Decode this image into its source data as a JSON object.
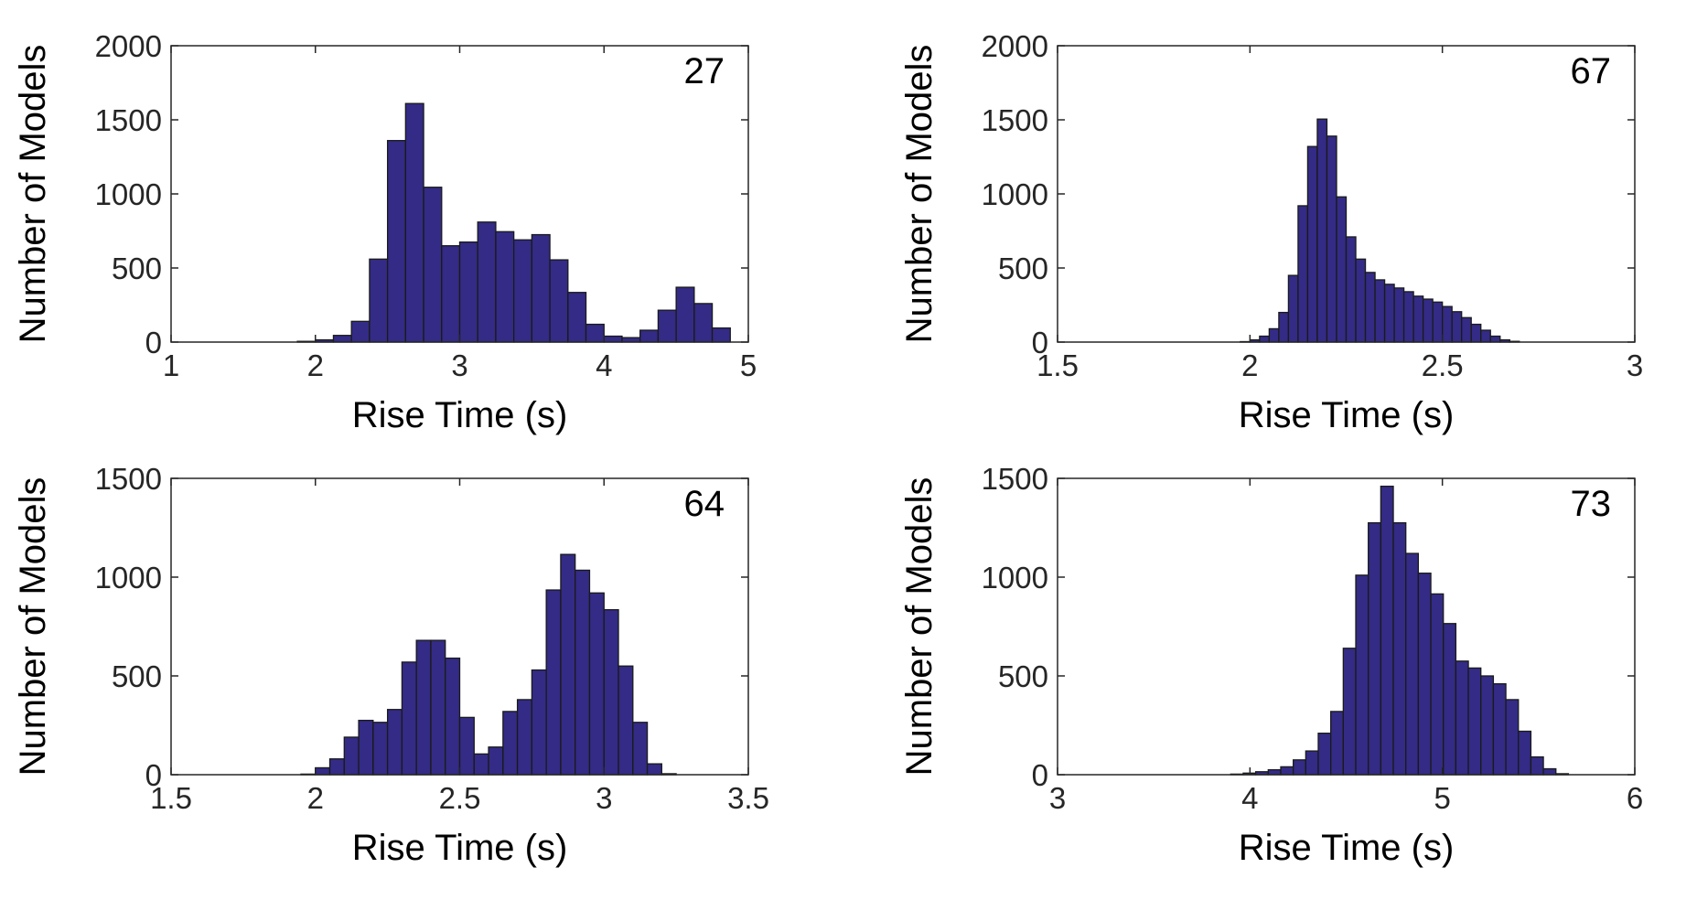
{
  "colors": {
    "bar_fill": "#332b85",
    "bar_edge": "#1a1a1a",
    "axes": "#262626"
  },
  "chart_data": [
    {
      "type": "bar",
      "panel_label": "27",
      "xlabel": "Rise Time (s)",
      "ylabel": "Number of Models",
      "xlim": [
        1,
        5
      ],
      "ylim": [
        0,
        2000
      ],
      "xticks": [
        1,
        2,
        3,
        4,
        5
      ],
      "yticks": [
        0,
        500,
        1000,
        1500,
        2000
      ],
      "bin_width": 0.125,
      "bins_start": [
        1.875,
        2.0,
        2.125,
        2.25,
        2.375,
        2.5,
        2.625,
        2.75,
        2.875,
        3.0,
        3.125,
        3.25,
        3.375,
        3.5,
        3.625,
        3.75,
        3.875,
        4.0,
        4.125,
        4.25,
        4.375,
        4.5,
        4.625,
        4.75
      ],
      "values": [
        5,
        15,
        45,
        140,
        560,
        1360,
        1610,
        1045,
        650,
        675,
        810,
        745,
        690,
        725,
        555,
        335,
        120,
        40,
        30,
        80,
        215,
        370,
        260,
        95
      ]
    },
    {
      "type": "bar",
      "panel_label": "67",
      "xlabel": "Rise Time (s)",
      "ylabel": "Number of Models",
      "xlim": [
        1.5,
        3
      ],
      "ylim": [
        0,
        2000
      ],
      "xticks": [
        1.5,
        2,
        2.5,
        3
      ],
      "yticks": [
        0,
        500,
        1000,
        1500,
        2000
      ],
      "bin_width": 0.025,
      "bins_start": [
        1.975,
        2.0,
        2.025,
        2.05,
        2.075,
        2.1,
        2.125,
        2.15,
        2.175,
        2.2,
        2.225,
        2.25,
        2.275,
        2.3,
        2.325,
        2.35,
        2.375,
        2.4,
        2.425,
        2.45,
        2.475,
        2.5,
        2.525,
        2.55,
        2.575,
        2.6,
        2.625,
        2.65,
        2.675
      ],
      "values": [
        3,
        15,
        40,
        90,
        200,
        450,
        920,
        1320,
        1505,
        1390,
        980,
        710,
        560,
        470,
        420,
        390,
        365,
        340,
        310,
        290,
        270,
        240,
        205,
        165,
        120,
        80,
        40,
        15,
        5
      ]
    },
    {
      "type": "bar",
      "panel_label": "64",
      "xlabel": "Rise Time (s)",
      "ylabel": "Number of Models",
      "xlim": [
        1.5,
        3.5
      ],
      "ylim": [
        0,
        1500
      ],
      "xticks": [
        1.5,
        2,
        2.5,
        3,
        3.5
      ],
      "yticks": [
        0,
        500,
        1000,
        1500
      ],
      "bin_width": 0.05,
      "bins_start": [
        1.95,
        2.0,
        2.05,
        2.1,
        2.15,
        2.2,
        2.25,
        2.3,
        2.35,
        2.4,
        2.45,
        2.5,
        2.55,
        2.6,
        2.65,
        2.7,
        2.75,
        2.8,
        2.85,
        2.9,
        2.95,
        3.0,
        3.05,
        3.1,
        3.15,
        3.2
      ],
      "values": [
        3,
        35,
        80,
        190,
        275,
        265,
        330,
        570,
        680,
        680,
        590,
        290,
        105,
        140,
        320,
        380,
        530,
        935,
        1115,
        1035,
        920,
        835,
        550,
        265,
        55,
        5
      ]
    },
    {
      "type": "bar",
      "panel_label": "73",
      "xlabel": "Rise Time (s)",
      "ylabel": "Number of Models",
      "xlim": [
        3,
        6
      ],
      "ylim": [
        0,
        1500
      ],
      "xticks": [
        3,
        4,
        5,
        6
      ],
      "yticks": [
        0,
        500,
        1000,
        1500
      ],
      "bin_width": 0.065,
      "bins_start": [
        3.9,
        3.965,
        4.03,
        4.095,
        4.16,
        4.225,
        4.29,
        4.355,
        4.42,
        4.485,
        4.55,
        4.615,
        4.68,
        4.745,
        4.81,
        4.875,
        4.94,
        5.005,
        5.07,
        5.135,
        5.2,
        5.265,
        5.33,
        5.395,
        5.46,
        5.525,
        5.59
      ],
      "values": [
        3,
        8,
        15,
        25,
        40,
        75,
        120,
        210,
        320,
        640,
        1010,
        1275,
        1460,
        1275,
        1120,
        1020,
        915,
        765,
        575,
        540,
        500,
        460,
        380,
        220,
        90,
        30,
        5
      ]
    }
  ]
}
